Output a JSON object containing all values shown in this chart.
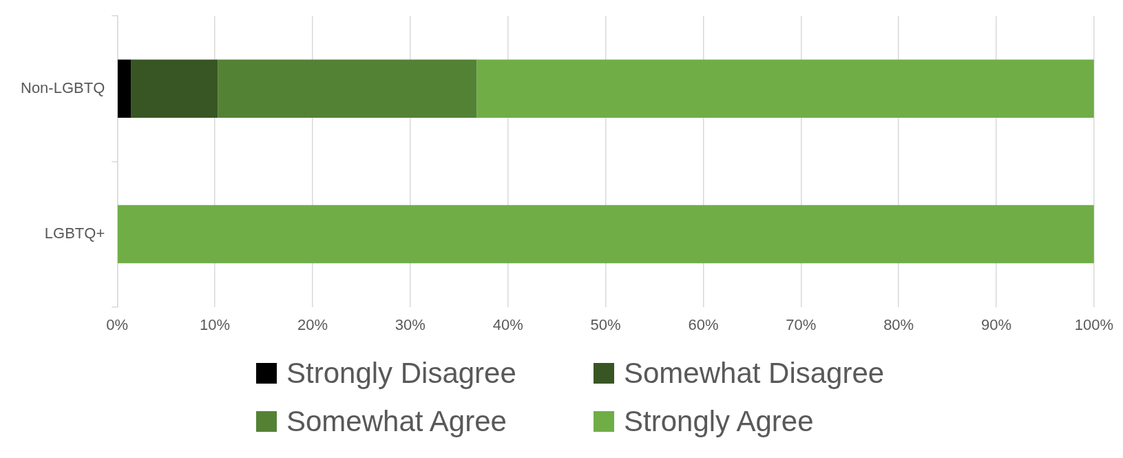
{
  "chart_data": {
    "type": "bar",
    "orientation": "horizontal",
    "stacked": true,
    "categories": [
      "Non-LGBTQ",
      "LGBTQ+"
    ],
    "series": [
      {
        "name": "Strongly Disagree",
        "color": "#000000",
        "values": [
          1.4,
          0
        ]
      },
      {
        "name": "Somewhat Disagree",
        "color": "#375623",
        "values": [
          8.9,
          0
        ]
      },
      {
        "name": "Somewhat Agree",
        "color": "#548235",
        "values": [
          26.5,
          0
        ]
      },
      {
        "name": "Strongly Agree",
        "color": "#70ad47",
        "values": [
          63.2,
          100
        ]
      }
    ],
    "xlim": [
      0,
      100
    ],
    "xticks": [
      {
        "value": 0,
        "label": "0%"
      },
      {
        "value": 10,
        "label": "10%"
      },
      {
        "value": 20,
        "label": "20%"
      },
      {
        "value": 30,
        "label": "30%"
      },
      {
        "value": 40,
        "label": "40%"
      },
      {
        "value": 50,
        "label": "50%"
      },
      {
        "value": 60,
        "label": "60%"
      },
      {
        "value": 70,
        "label": "70%"
      },
      {
        "value": 80,
        "label": "80%"
      },
      {
        "value": 90,
        "label": "90%"
      },
      {
        "value": 100,
        "label": "100%"
      }
    ],
    "grid": "x",
    "legend": "bottom"
  }
}
